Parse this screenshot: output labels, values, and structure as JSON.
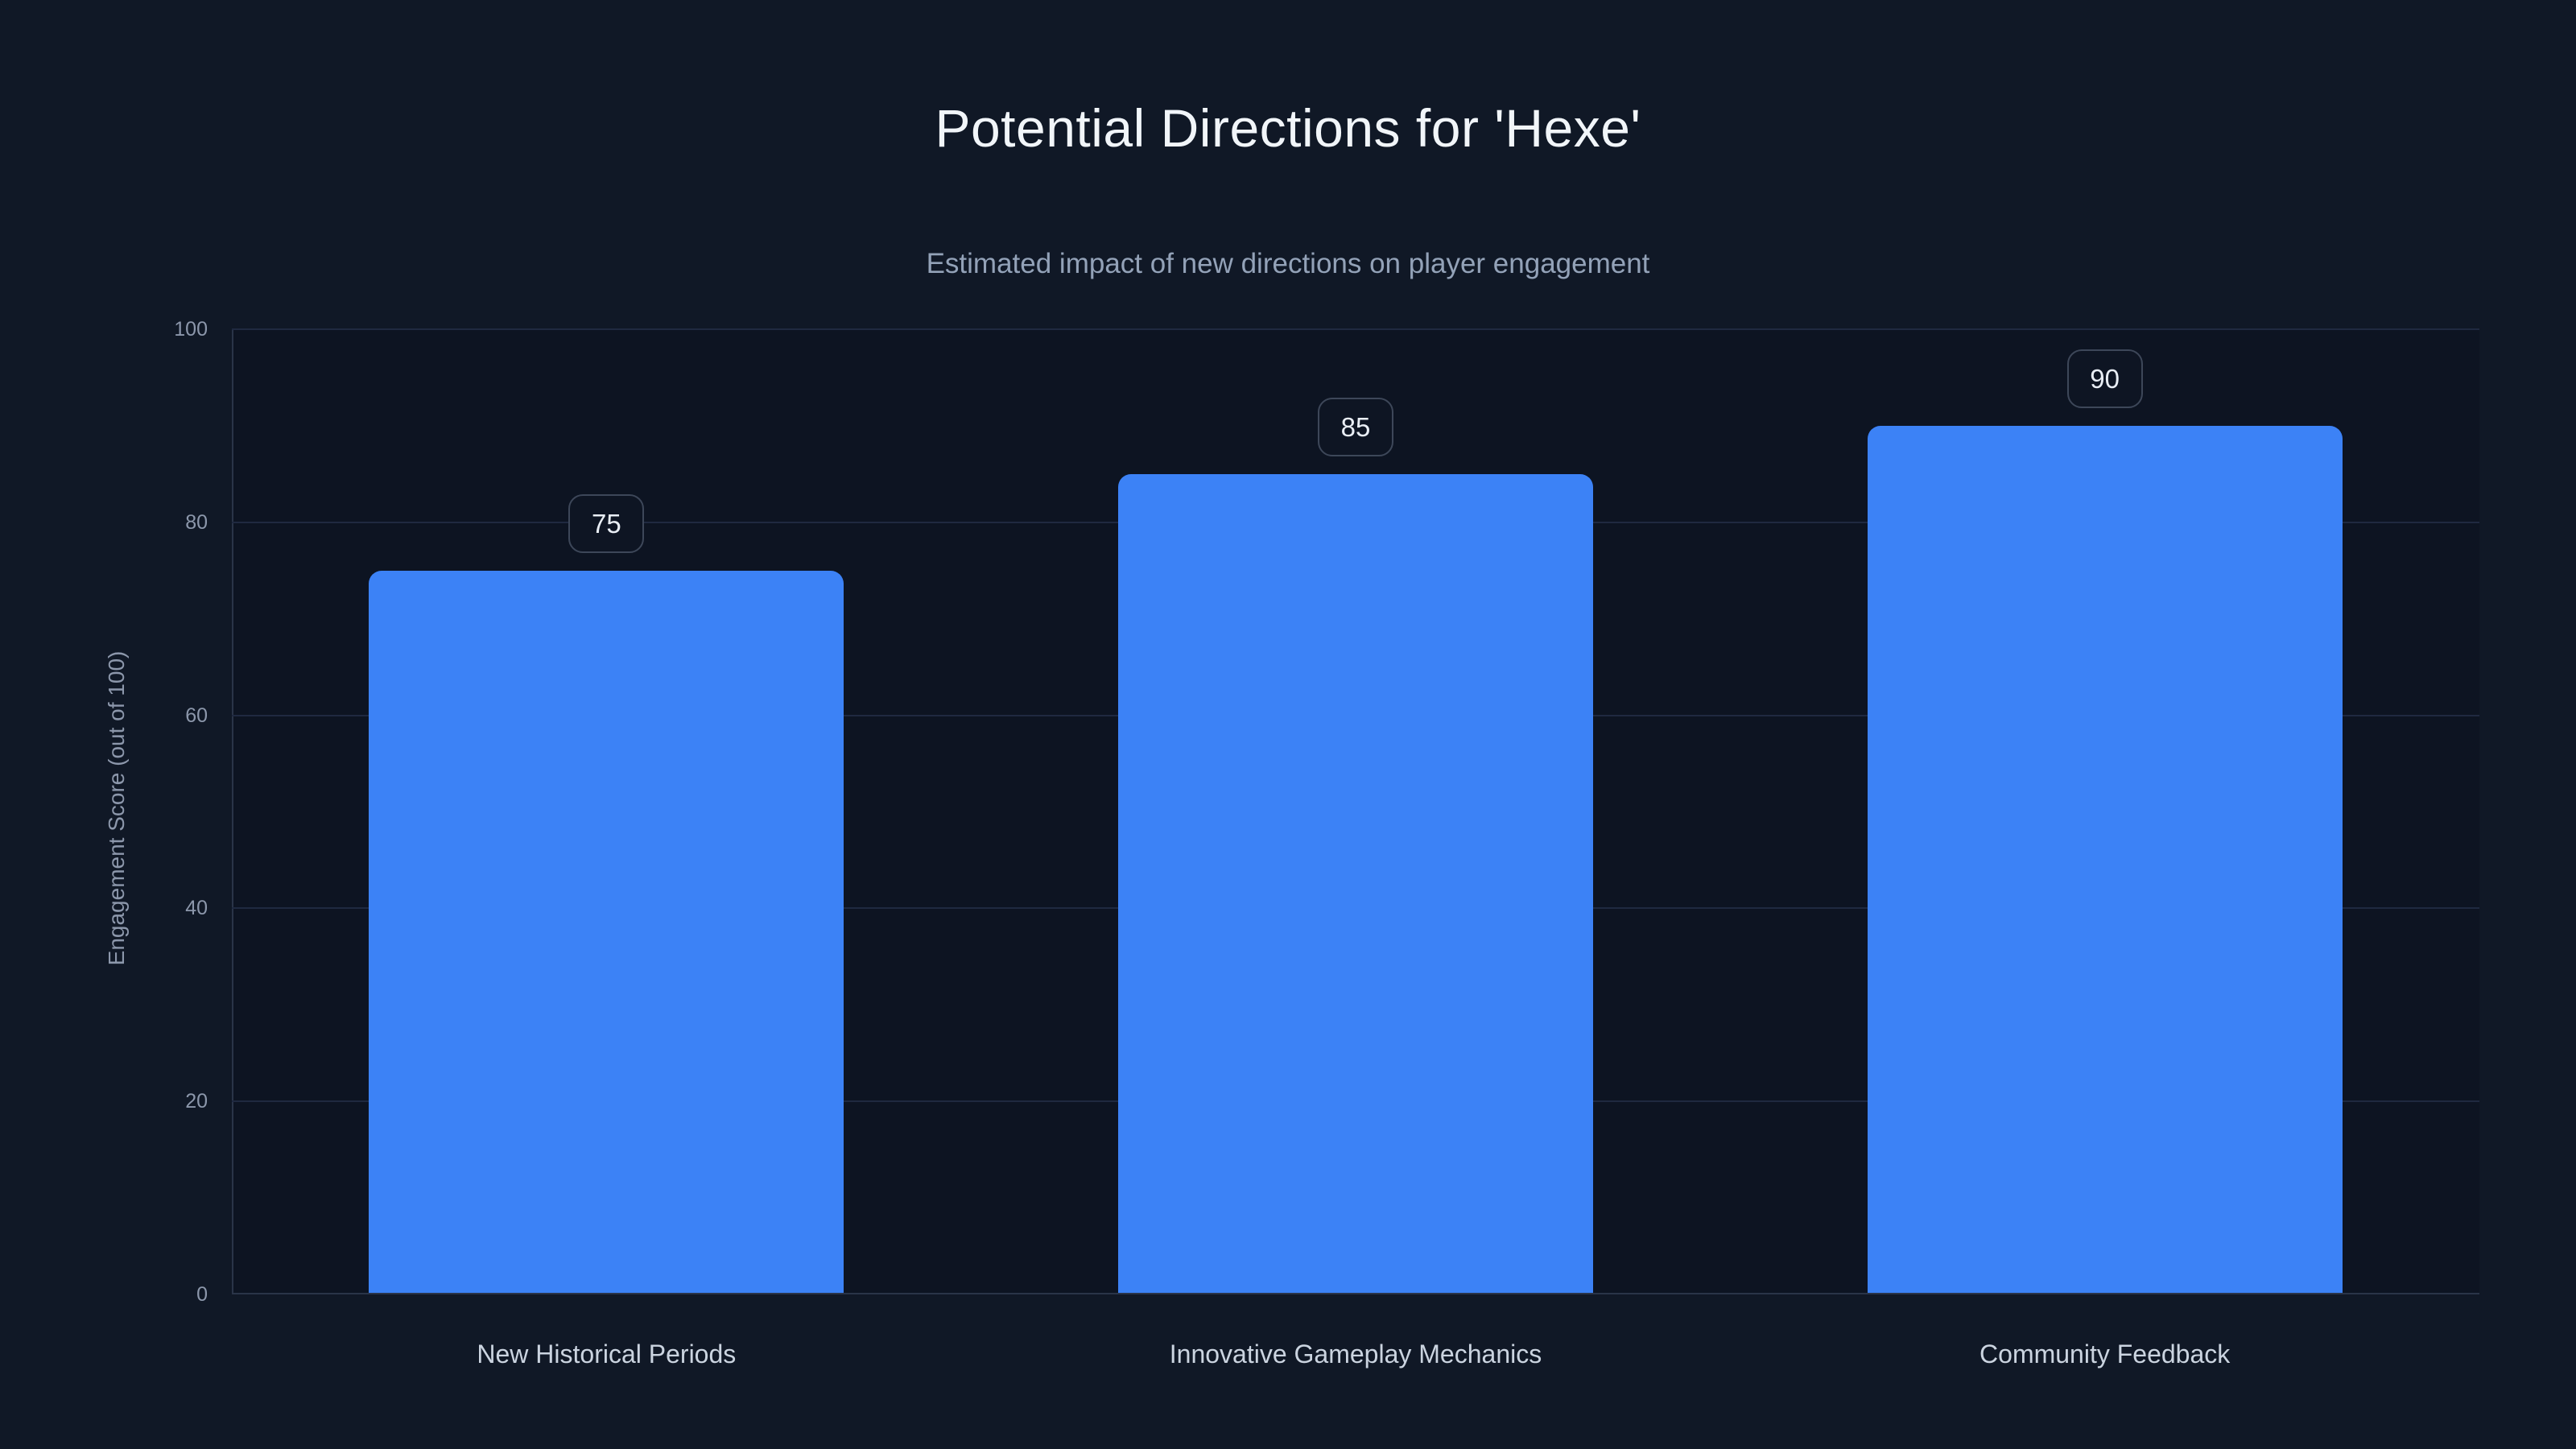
{
  "header": {
    "title": "Potential Directions for 'Hexe'",
    "subtitle": "Estimated impact of new directions on player engagement"
  },
  "chart_data": {
    "type": "bar",
    "title": "Potential Directions for 'Hexe'",
    "subtitle": "Estimated impact of new directions on player engagement",
    "categories": [
      "New Historical Periods",
      "Innovative Gameplay Mechanics",
      "Community Feedback"
    ],
    "values": [
      75,
      85,
      90
    ],
    "value_labels": [
      "75",
      "85",
      "90"
    ],
    "xlabel": "",
    "ylabel": "Engagement Score (out of 100)",
    "ylim": [
      0,
      100
    ],
    "yticks": [
      0,
      20,
      40,
      60,
      80,
      100
    ],
    "grid": true,
    "legend": false,
    "value_badges_shown": true,
    "colors": {
      "bar": "#3C82F6",
      "background": "#101826",
      "plot_background": "#0D1422",
      "gridline": "#1F2940",
      "axis_line": "#2A3448",
      "tick_label": "#8C97AB",
      "category_label": "#CBD4E0",
      "value_label": "#E9EEF5",
      "title": "#F1F5F9",
      "subtitle": "#93A2B8"
    }
  }
}
